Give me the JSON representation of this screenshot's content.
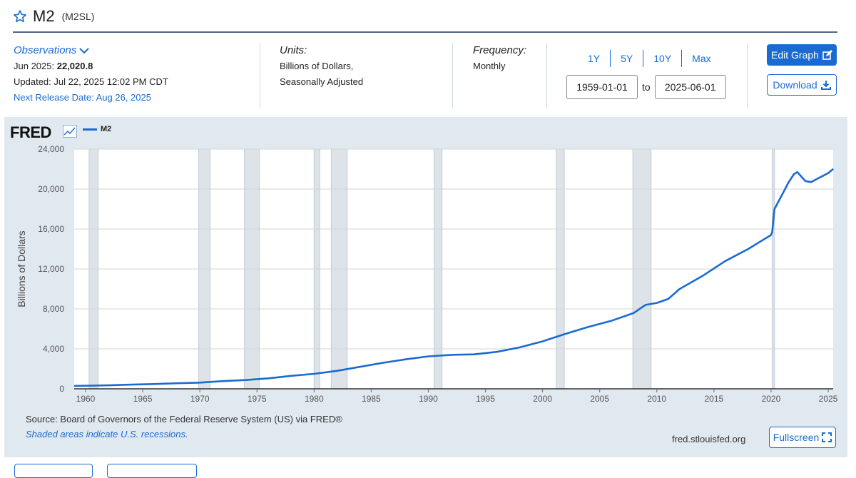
{
  "series": {
    "title": "M2",
    "id": "(M2SL)"
  },
  "observations": {
    "label": "Observations",
    "date_label": "Jun 2025:",
    "value": "22,020.8",
    "updated": "Updated: Jul 22, 2025 12:02 PM CDT",
    "next_release": "Next Release Date: Aug 26, 2025"
  },
  "units": {
    "label": "Units:",
    "line1": "Billions of Dollars,",
    "line2": "Seasonally Adjusted"
  },
  "frequency": {
    "label": "Frequency:",
    "value": "Monthly"
  },
  "range_links": [
    "1Y",
    "5Y",
    "10Y",
    "Max"
  ],
  "date_range": {
    "start": "1959-01-01",
    "to": "to",
    "end": "2025-06-01"
  },
  "buttons": {
    "edit_graph": "Edit Graph",
    "download": "Download",
    "fullscreen": "Fullscreen"
  },
  "graph": {
    "logo": "FRED",
    "legend": "M2",
    "source": "Source: Board of Governors of the Federal Reserve System (US) via FRED®",
    "recession_note": "Shaded areas indicate U.S. recessions.",
    "site": "fred.stlouisfed.org"
  },
  "colors": {
    "accent": "#1a6bd1",
    "line": "#1a6bd1",
    "panel": "#e1e9f0",
    "recession": "#dde3e8"
  },
  "chart_data": {
    "type": "line",
    "ylabel": "Billions of Dollars",
    "xlim": [
      1959.0,
      2025.5
    ],
    "ylim": [
      0,
      24000
    ],
    "yticks": [
      0,
      4000,
      8000,
      12000,
      16000,
      20000,
      24000
    ],
    "ytick_labels": [
      "0",
      "4,000",
      "8,000",
      "12,000",
      "16,000",
      "20,000",
      "24,000"
    ],
    "xticks": [
      1960,
      1965,
      1970,
      1975,
      1980,
      1985,
      1990,
      1995,
      2000,
      2005,
      2010,
      2015,
      2020,
      2025
    ],
    "xtick_labels": [
      "1960",
      "1965",
      "1970",
      "1975",
      "1980",
      "1985",
      "1990",
      "1995",
      "2000",
      "2005",
      "2010",
      "2015",
      "2020",
      "2025"
    ],
    "grid": true,
    "recessions": [
      [
        1960.3,
        1961.1
      ],
      [
        1969.9,
        1970.9
      ],
      [
        1973.9,
        1975.2
      ],
      [
        1980.0,
        1980.5
      ],
      [
        1981.5,
        1982.9
      ],
      [
        1990.5,
        1991.2
      ],
      [
        2001.2,
        2001.9
      ],
      [
        2007.9,
        2009.5
      ],
      [
        2020.1,
        2020.3
      ]
    ],
    "series": [
      {
        "name": "M2",
        "x": [
          1959,
          1960,
          1962,
          1964,
          1966,
          1968,
          1970,
          1972,
          1974,
          1976,
          1978,
          1980,
          1982,
          1984,
          1986,
          1988,
          1990,
          1992,
          1994,
          1996,
          1998,
          2000,
          2002,
          2004,
          2006,
          2008,
          2009,
          2010,
          2011,
          2012,
          2014,
          2016,
          2018,
          2019,
          2020.0,
          2020.1,
          2020.3,
          2021,
          2021.5,
          2022.0,
          2022.3,
          2023.0,
          2023.5,
          2024,
          2024.5,
          2025.0,
          2025.45
        ],
        "y": [
          290,
          305,
          350,
          420,
          480,
          560,
          620,
          770,
          880,
          1050,
          1300,
          1500,
          1800,
          2200,
          2600,
          2950,
          3250,
          3400,
          3450,
          3700,
          4150,
          4750,
          5500,
          6200,
          6800,
          7600,
          8400,
          8600,
          9000,
          10000,
          11300,
          12800,
          14000,
          14700,
          15400,
          15700,
          18000,
          19500,
          20600,
          21500,
          21700,
          20800,
          20700,
          21000,
          21300,
          21600,
          22020
        ]
      }
    ]
  }
}
